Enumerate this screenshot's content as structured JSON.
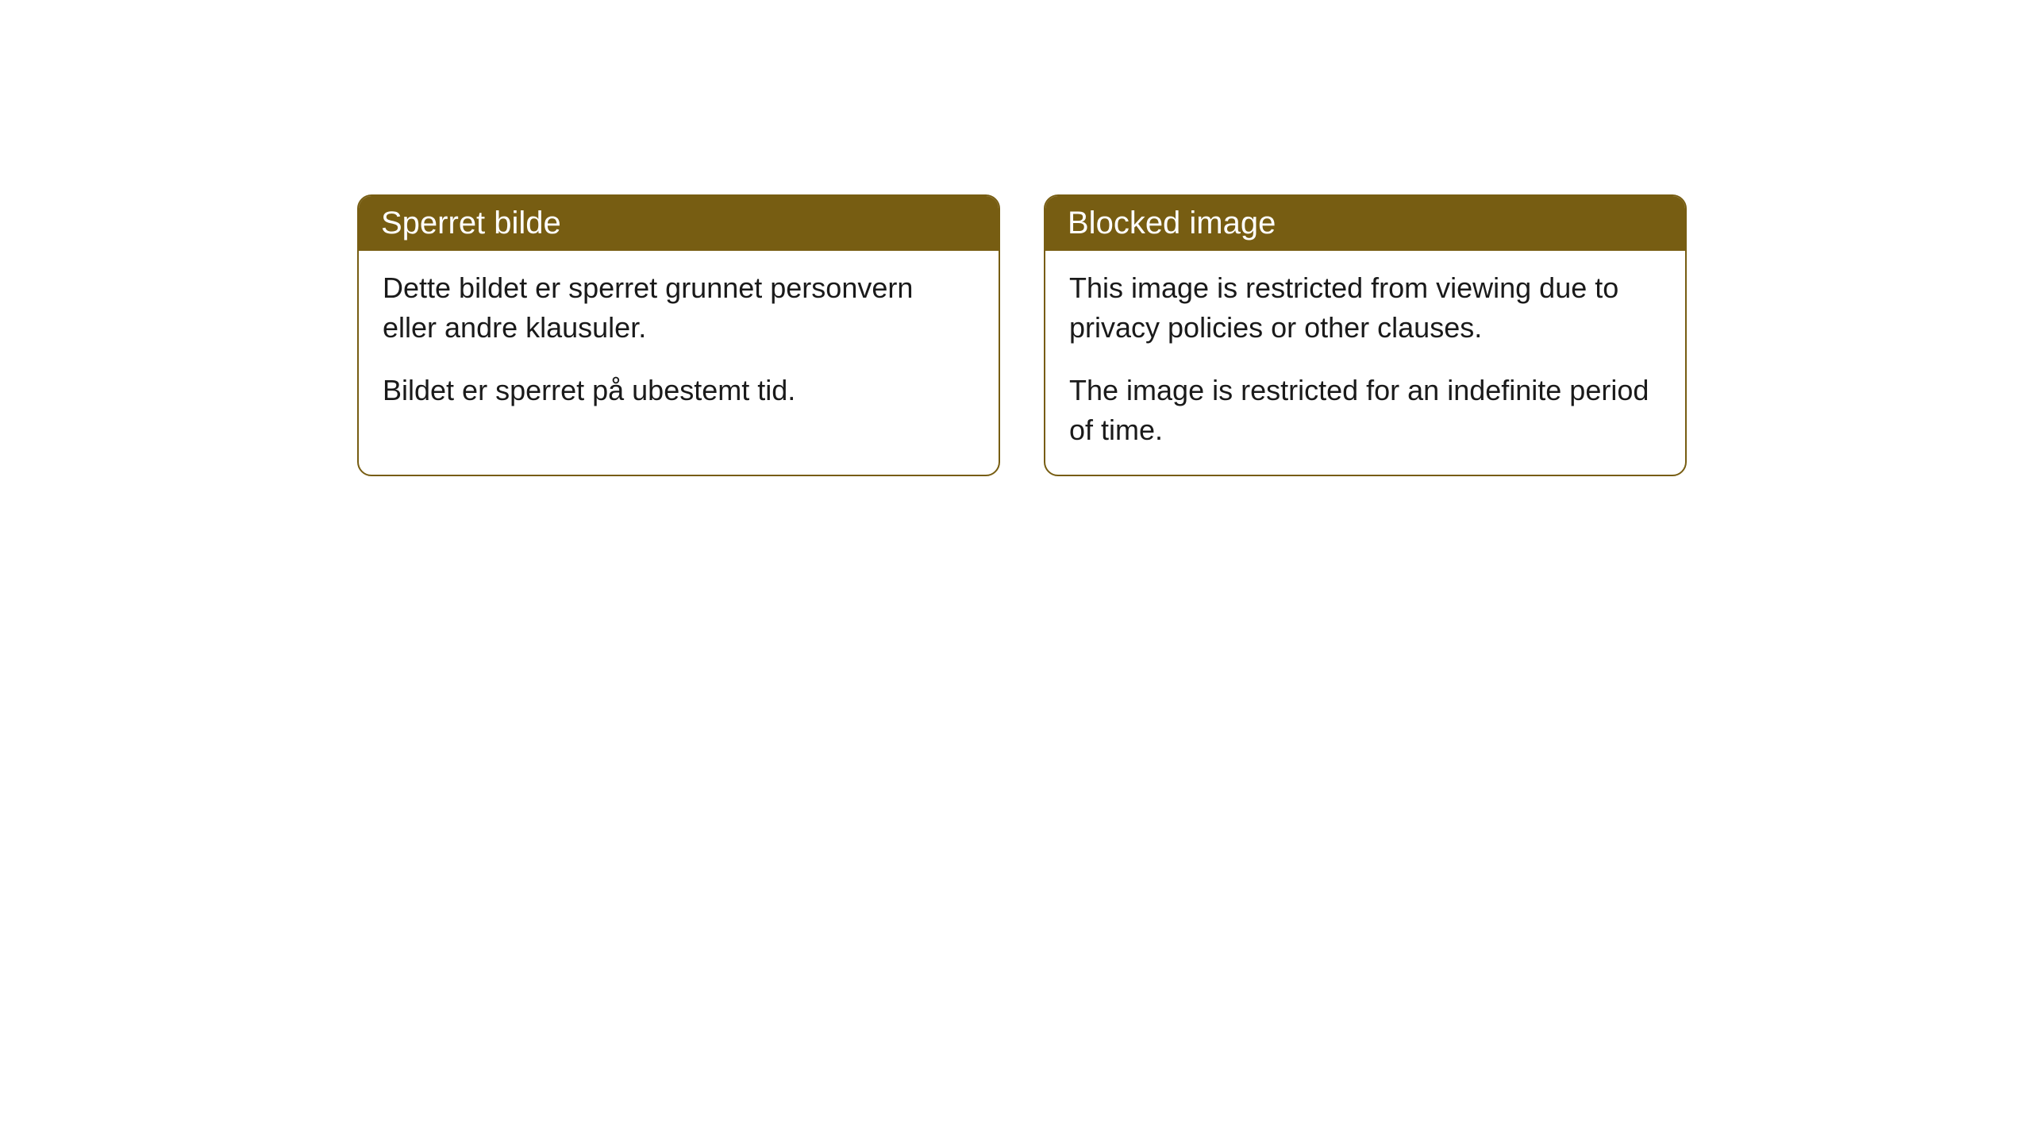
{
  "cards": [
    {
      "header": "Sperret bilde",
      "paragraph1": "Dette bildet er sperret grunnet personvern eller andre klausuler.",
      "paragraph2": "Bildet er sperret på ubestemt tid."
    },
    {
      "header": "Blocked image",
      "paragraph1": "This image is restricted from viewing due to privacy policies or other clauses.",
      "paragraph2": "The image is restricted for an indefinite period of time."
    }
  ],
  "styling": {
    "header_bg_color": "#775d12",
    "header_text_color": "#ffffff",
    "border_color": "#775d12",
    "body_text_color": "#1a1a1a",
    "body_bg_color": "#ffffff",
    "border_radius": 18,
    "header_fontsize": 40,
    "body_fontsize": 36
  }
}
